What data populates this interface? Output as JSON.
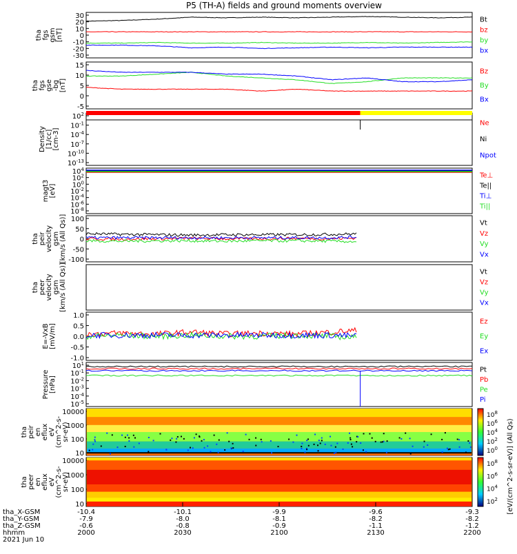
{
  "title": "P5 (TH-A) fields and ground moments overview",
  "colors": {
    "black": "#000000",
    "red": "#ff0000",
    "green": "#22dd22",
    "blue": "#0000ff",
    "yellow": "#ffff00"
  },
  "chart_data": [
    {
      "type": "line",
      "ylabel": [
        "tha",
        "fgs",
        "gsm",
        "[nT]"
      ],
      "yticks": [
        "30",
        "20",
        "10",
        "0",
        "-10",
        "-20",
        "-30"
      ],
      "ylim": [
        -30,
        30
      ],
      "legend": [
        "Bt",
        "bz",
        "by",
        "bx"
      ],
      "series": [
        {
          "name": "Bt",
          "color": "black",
          "values": [
            21,
            22,
            24,
            27,
            26,
            27,
            26,
            27,
            28,
            27,
            26,
            27
          ]
        },
        {
          "name": "bz",
          "color": "red",
          "values": [
            5,
            5,
            5,
            5,
            5,
            5,
            5,
            5,
            5,
            5,
            5,
            5
          ]
        },
        {
          "name": "by",
          "color": "green",
          "values": [
            -12,
            -12,
            -11,
            -12,
            -12,
            -11,
            -12,
            -12,
            -11,
            -12,
            -11,
            -10
          ]
        },
        {
          "name": "bx",
          "color": "blue",
          "values": [
            -15,
            -15,
            -16,
            -19,
            -18,
            -20,
            -19,
            -18,
            -19,
            -18,
            -18,
            -18
          ]
        }
      ]
    },
    {
      "type": "line",
      "ylabel": [
        "tha",
        "fgs",
        "gse",
        "-bg",
        "[nT]"
      ],
      "yticks": [
        "15",
        "10",
        "5",
        "0",
        "-5"
      ],
      "ylim": [
        -7,
        15
      ],
      "legend": [
        "Bz",
        "By",
        "Bx"
      ],
      "series": [
        {
          "name": "Bz",
          "color": "red",
          "values": [
            3,
            2,
            2,
            2,
            2,
            1,
            2,
            1,
            1,
            1,
            1,
            1
          ]
        },
        {
          "name": "By",
          "color": "green",
          "values": [
            9,
            9,
            10,
            11,
            9,
            8,
            7,
            5,
            6,
            8,
            8,
            8
          ]
        },
        {
          "name": "Bx",
          "color": "blue",
          "values": [
            12,
            11,
            11,
            11,
            10,
            10,
            9,
            7,
            8,
            6,
            6,
            7
          ]
        }
      ]
    },
    {
      "type": "line",
      "ylabel": [
        "Density",
        "[1/cc]",
        "[cm-3]"
      ],
      "yticks": [
        "10^2",
        "10^-1",
        "10^-4",
        "10^-7",
        "10^-10",
        "10^-13"
      ],
      "legend": [
        "Ne",
        "Ni",
        "Npot"
      ],
      "mode_bar": {
        "red_until": "2123",
        "yellow_after": "2123"
      }
    },
    {
      "type": "line",
      "ylabel": [
        "magt3",
        "[eV]"
      ],
      "yticks": [
        "10^4",
        "10^2",
        "10^0",
        "10^-2",
        "10^-4",
        "10^-6",
        "10^-8"
      ],
      "legend": [
        "Te⊥",
        "Te||",
        "Ti⊥",
        "Ti||"
      ]
    },
    {
      "type": "line",
      "ylabel": [
        "tha",
        "peir",
        "velocity",
        "gsm",
        "[km/s (All Qs)]"
      ],
      "yticks": [
        "100",
        "50",
        "0",
        "-50",
        "-100"
      ],
      "ylim": [
        -100,
        100
      ],
      "legend": [
        "Vt",
        "Vz",
        "Vy",
        "Vx"
      ],
      "data_end": "2125",
      "series": [
        {
          "name": "Vt",
          "color": "black",
          "values": [
            25,
            22,
            20,
            18,
            20,
            20,
            20,
            22,
            25,
            45,
            50,
            30
          ]
        },
        {
          "name": "Vz",
          "color": "red",
          "values": [
            0,
            -2,
            0,
            2,
            0,
            0,
            2,
            0,
            5,
            -10,
            10,
            0
          ]
        },
        {
          "name": "Vy",
          "color": "green",
          "values": [
            -10,
            -12,
            -10,
            -10,
            -12,
            -10,
            -10,
            -12,
            -15,
            -30,
            -20,
            -15
          ]
        },
        {
          "name": "Vx",
          "color": "blue",
          "values": [
            5,
            5,
            5,
            5,
            5,
            5,
            5,
            5,
            10,
            -20,
            30,
            5
          ]
        }
      ]
    },
    {
      "type": "line",
      "ylabel": [
        "tha",
        "peer",
        "velocity",
        "gsm",
        "[km/s (All Qs)]"
      ],
      "legend": [
        "Vt",
        "Vz",
        "Vy",
        "Vx"
      ]
    },
    {
      "type": "line",
      "ylabel": [
        "E=-VxB",
        "[mV/m]"
      ],
      "yticks": [
        "1.0",
        "0.5",
        "0.0",
        "-0.5",
        "-1.0"
      ],
      "ylim": [
        -1,
        1
      ],
      "legend": [
        "Ez",
        "Ey",
        "Ex"
      ],
      "data_end": "2125",
      "series": [
        {
          "name": "Ez",
          "color": "red",
          "values": [
            0.1,
            0.15,
            0.1,
            0.2,
            0.1,
            0.15,
            0.1,
            0.2,
            0.3,
            0.6,
            0.5,
            0.3
          ]
        },
        {
          "name": "Ey",
          "color": "green",
          "values": [
            0.0,
            0.05,
            0.0,
            0.05,
            0.0,
            0.0,
            0.05,
            0.0,
            -0.1,
            -0.2,
            -0.3,
            -0.1
          ]
        },
        {
          "name": "Ex",
          "color": "blue",
          "values": [
            0.05,
            0.05,
            0.05,
            0.05,
            0.05,
            0.05,
            0.05,
            0.05,
            0.0,
            0.1,
            0.0,
            0.0
          ]
        }
      ]
    },
    {
      "type": "line",
      "ylabel": [
        "Pressure",
        "[nPa]"
      ],
      "yticks": [
        "10^1",
        "10^-1",
        "10^-2",
        "10^-3",
        "10^-4",
        "10^-5"
      ],
      "legend": [
        "Pt",
        "Pb",
        "Pe",
        "Pi"
      ]
    },
    {
      "type": "heatmap",
      "ylabel": [
        "tha",
        "peir",
        "en",
        "eflux",
        "eV",
        "(cm^2-s-",
        "sr-eV)"
      ],
      "yticks": [
        "10000",
        "1000",
        "100",
        "10"
      ],
      "colorbar_ticks": [
        "10^8",
        "10^6",
        "10^4",
        "10^2",
        "10^0"
      ]
    },
    {
      "type": "heatmap",
      "ylabel": [
        "tha",
        "peer",
        "en",
        "eflux",
        "eV",
        "(cm^2-s-",
        "sr-eV)"
      ],
      "yticks": [
        "10000",
        "1000",
        "100",
        "10"
      ],
      "colorbar_ticks": [
        "10^8",
        "10^6",
        "10^4",
        "10^2"
      ]
    }
  ],
  "colorbar_label": "[eV/(cm^2-s-sr-eV)] (All Qs)",
  "xaxis": {
    "rows": [
      {
        "label": "tha_X-GSM",
        "values": [
          "-10.4",
          "-10.1",
          "-9.9",
          "-9.6",
          "-9.3"
        ]
      },
      {
        "label": "tha_Y-GSM",
        "values": [
          "-7.9",
          "-8.0",
          "-8.1",
          "-8.2",
          "-8.2"
        ]
      },
      {
        "label": "tha_Z-GSM",
        "values": [
          "-0.6",
          "-0.8",
          "-0.9",
          "-1.1",
          "-1.2"
        ]
      },
      {
        "label": "hhmm",
        "values": [
          "2000",
          "2030",
          "2100",
          "2130",
          "2200"
        ]
      }
    ],
    "date": "2021 Jun 10"
  }
}
